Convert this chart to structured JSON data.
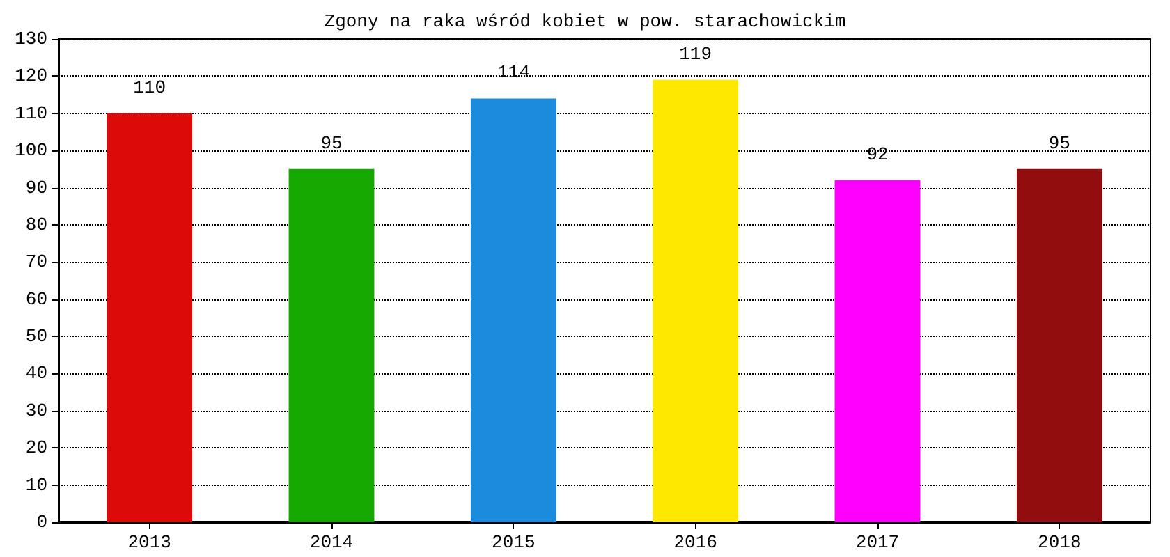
{
  "chart_data": {
    "type": "bar",
    "title": "Zgony na raka wśród kobiet w pow. starachowickim",
    "categories": [
      "2013",
      "2014",
      "2015",
      "2016",
      "2017",
      "2018"
    ],
    "values": [
      110,
      95,
      114,
      119,
      92,
      95
    ],
    "colors": [
      "#dd0a0a",
      "#14a800",
      "#1a8bdd",
      "#ffe800",
      "#ff00ff",
      "#920e0e"
    ],
    "ylim": [
      0,
      130
    ],
    "yticks": [
      0,
      10,
      20,
      30,
      40,
      50,
      60,
      70,
      80,
      90,
      100,
      110,
      120,
      130
    ],
    "grid": "y",
    "data_labels": true
  }
}
